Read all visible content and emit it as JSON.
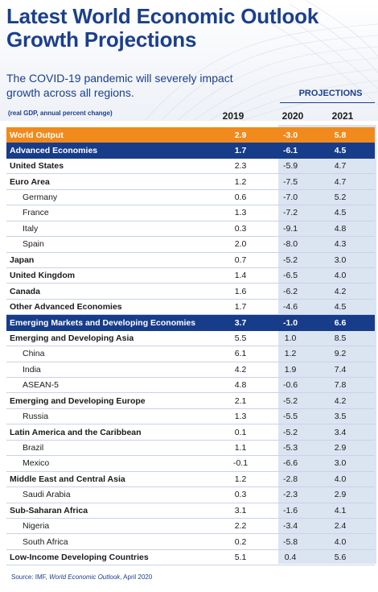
{
  "header": {
    "title_line1": "Latest World Economic Outlook",
    "title_line2": "Growth Projections",
    "subtitle": "The COVID-19 pandemic will severely impact growth across all regions.",
    "unit_note": "(real GDP, annual percent change)",
    "projections_label": "PROJECTIONS",
    "years": [
      "2019",
      "2020",
      "2021"
    ]
  },
  "table": {
    "rows": [
      {
        "name": "World Output",
        "v": [
          "2.9",
          "-3.0",
          "5.8"
        ],
        "style": "world"
      },
      {
        "name": "Advanced Economies",
        "v": [
          "1.7",
          "-6.1",
          "4.5"
        ],
        "style": "band"
      },
      {
        "name": "United States",
        "v": [
          "2.3",
          "-5.9",
          "4.7"
        ],
        "style": "bold"
      },
      {
        "name": "Euro Area",
        "v": [
          "1.2",
          "-7.5",
          "4.7"
        ],
        "style": "bold"
      },
      {
        "name": "Germany",
        "v": [
          "0.6",
          "-7.0",
          "5.2"
        ],
        "style": "sub"
      },
      {
        "name": "France",
        "v": [
          "1.3",
          "-7.2",
          "4.5"
        ],
        "style": "sub"
      },
      {
        "name": "Italy",
        "v": [
          "0.3",
          "-9.1",
          "4.8"
        ],
        "style": "sub"
      },
      {
        "name": "Spain",
        "v": [
          "2.0",
          "-8.0",
          "4.3"
        ],
        "style": "sub"
      },
      {
        "name": "Japan",
        "v": [
          "0.7",
          "-5.2",
          "3.0"
        ],
        "style": "bold"
      },
      {
        "name": "United Kingdom",
        "v": [
          "1.4",
          "-6.5",
          "4.0"
        ],
        "style": "bold"
      },
      {
        "name": "Canada",
        "v": [
          "1.6",
          "-6.2",
          "4.2"
        ],
        "style": "bold"
      },
      {
        "name": "Other Advanced Economies",
        "v": [
          "1.7",
          "-4.6",
          "4.5"
        ],
        "style": "bold"
      },
      {
        "name": "Emerging Markets and Developing Economies",
        "v": [
          "3.7",
          "-1.0",
          "6.6"
        ],
        "style": "band"
      },
      {
        "name": "Emerging and Developing Asia",
        "v": [
          "5.5",
          "1.0",
          "8.5"
        ],
        "style": "bold"
      },
      {
        "name": "China",
        "v": [
          "6.1",
          "1.2",
          "9.2"
        ],
        "style": "sub"
      },
      {
        "name": "India",
        "v": [
          "4.2",
          "1.9",
          "7.4"
        ],
        "style": "sub"
      },
      {
        "name": "ASEAN-5",
        "v": [
          "4.8",
          "-0.6",
          "7.8"
        ],
        "style": "sub"
      },
      {
        "name": "Emerging and Developing Europe",
        "v": [
          "2.1",
          "-5.2",
          "4.2"
        ],
        "style": "bold"
      },
      {
        "name": "Russia",
        "v": [
          "1.3",
          "-5.5",
          "3.5"
        ],
        "style": "sub"
      },
      {
        "name": "Latin America and the Caribbean",
        "v": [
          "0.1",
          "-5.2",
          "3.4"
        ],
        "style": "bold"
      },
      {
        "name": "Brazil",
        "v": [
          "1.1",
          "-5.3",
          "2.9"
        ],
        "style": "sub"
      },
      {
        "name": "Mexico",
        "v": [
          "-0.1",
          "-6.6",
          "3.0"
        ],
        "style": "sub"
      },
      {
        "name": "Middle East and Central Asia",
        "v": [
          "1.2",
          "-2.8",
          "4.0"
        ],
        "style": "bold"
      },
      {
        "name": "Saudi Arabia",
        "v": [
          "0.3",
          "-2.3",
          "2.9"
        ],
        "style": "sub"
      },
      {
        "name": "Sub-Saharan Africa",
        "v": [
          "3.1",
          "-1.6",
          "4.1"
        ],
        "style": "bold"
      },
      {
        "name": "Nigeria",
        "v": [
          "2.2",
          "-3.4",
          "2.4"
        ],
        "style": "sub"
      },
      {
        "name": "South Africa",
        "v": [
          "0.2",
          "-5.8",
          "4.0"
        ],
        "style": "sub"
      },
      {
        "name": "Low-Income Developing Countries",
        "v": [
          "5.1",
          "0.4",
          "5.6"
        ],
        "style": "bold"
      }
    ]
  },
  "footer": {
    "source_prefix": "Source: IMF, ",
    "source_title": "World Economic Outlook",
    "source_suffix": ", April 2020"
  },
  "colors": {
    "title_blue": "#1b3f8b",
    "world_orange": "#f18a1c",
    "band_navy": "#173c8a",
    "projection_shade": "#dbe4f1"
  }
}
